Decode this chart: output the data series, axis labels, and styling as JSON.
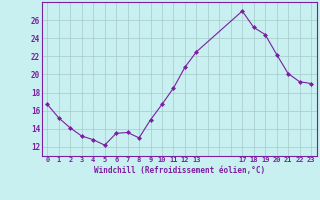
{
  "x": [
    0,
    1,
    2,
    3,
    4,
    5,
    6,
    7,
    8,
    9,
    10,
    11,
    12,
    13,
    17,
    18,
    19,
    20,
    21,
    22,
    23
  ],
  "y": [
    16.7,
    15.2,
    14.1,
    13.2,
    12.8,
    12.2,
    13.5,
    13.6,
    13.0,
    15.0,
    16.7,
    18.5,
    20.8,
    22.5,
    27.0,
    25.2,
    24.4,
    22.2,
    20.1,
    19.2,
    19.0
  ],
  "line_color": "#7b1fa2",
  "marker_color": "#7b1fa2",
  "bg_color": "#c8f0f0",
  "grid_color": "#a8c8c8",
  "xlabel": "Windchill (Refroidissement éolien,°C)",
  "xlabel_color": "#7b1fa2",
  "tick_color": "#7b1fa2",
  "ylim": [
    11,
    28
  ],
  "xlim": [
    -0.5,
    23.5
  ],
  "yticks": [
    12,
    14,
    16,
    18,
    20,
    22,
    24,
    26
  ],
  "xtick_labels": [
    "0",
    "1",
    "2",
    "3",
    "4",
    "5",
    "6",
    "7",
    "8",
    "9",
    "10",
    "11",
    "12",
    "13",
    "",
    "",
    "",
    "17",
    "18",
    "19",
    "20",
    "21",
    "22",
    "23"
  ]
}
